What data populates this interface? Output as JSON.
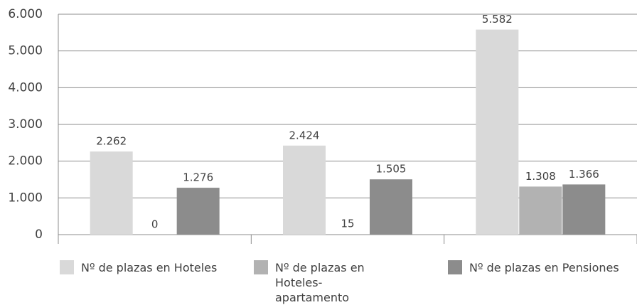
{
  "chart_data": {
    "type": "bar",
    "categories": [
      null,
      null,
      null
    ],
    "series": [
      {
        "name": "Nº de plazas en Hoteles",
        "color": "#d9d9d9",
        "values": [
          2262,
          2424,
          5582
        ],
        "value_labels": [
          "2.262",
          "2.424",
          "5.582"
        ]
      },
      {
        "name": "Nº de plazas en Hoteles-apartamento",
        "color": "#b2b2b2",
        "values": [
          0,
          15,
          1308
        ],
        "value_labels": [
          "0",
          "15",
          "1.308"
        ]
      },
      {
        "name": "Nº de plazas en Pensiones",
        "color": "#8c8c8c",
        "values": [
          1276,
          1505,
          1366
        ],
        "value_labels": [
          "1.276",
          "1.505",
          "1.366"
        ]
      }
    ],
    "ylim": [
      0,
      6000
    ],
    "yticks": [
      0,
      {
        "value": 1000,
        "label": "1.000"
      },
      {
        "value": 2000,
        "label": "2.000"
      },
      {
        "value": 3000,
        "label": "3.000"
      },
      {
        "value": 4000,
        "label": "4.000"
      },
      {
        "value": 5000,
        "label": "5.000"
      },
      {
        "value": 6000,
        "label": "6.000"
      }
    ],
    "grid": true
  }
}
